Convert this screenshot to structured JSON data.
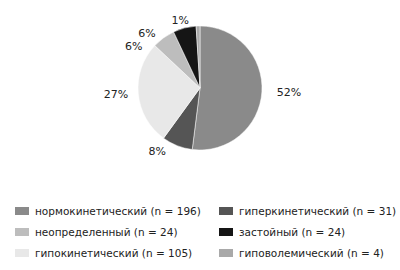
{
  "chart_data": {
    "type": "pie",
    "categories": [
      "нормокинетический (n = 196)",
      "гиперкинетический (n = 31)",
      "гипокинетический (n = 105)",
      "неопределенный (n = 24)",
      "застойный (n = 24)",
      "гиповолемический (n = 4)"
    ],
    "values": [
      52,
      8,
      27,
      6,
      6,
      1
    ],
    "value_labels": [
      "52%",
      "8%",
      "27%",
      "6%",
      "6%",
      "1%"
    ],
    "colors": [
      "#8a8a8a",
      "#555555",
      "#e8e8e8",
      "#bdbdbd",
      "#151515",
      "#a9a9a9"
    ],
    "data_labels": true,
    "legend": "bottom"
  }
}
